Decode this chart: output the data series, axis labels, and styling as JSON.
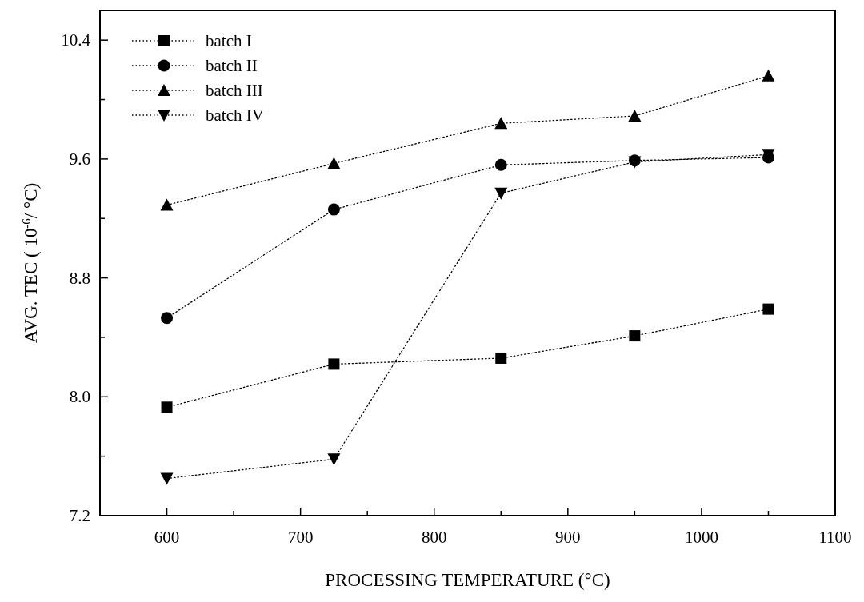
{
  "chart_data": {
    "type": "line",
    "xlabel": "PROCESSING TEMPERATURE (°C)",
    "ylabel": "AVG. TEC ( 10$^{-6}$/ °C)",
    "x": [
      600,
      725,
      850,
      950,
      1050
    ],
    "xlim": [
      550,
      1100
    ],
    "xticks": [
      600,
      {
        "value": 650,
        "label": null
      },
      700,
      {
        "value": 750,
        "label": null
      },
      800,
      {
        "value": 850,
        "label": null
      },
      900,
      {
        "value": 950,
        "label": null
      },
      1000,
      {
        "value": 1050,
        "label": null
      },
      1100
    ],
    "ylim": [
      7.2,
      10.6
    ],
    "yticks": [
      7.2,
      {
        "value": 7.6,
        "label": null
      },
      {
        "value": 8,
        "label": "8.0"
      },
      {
        "value": 8.4,
        "label": null
      },
      8.8,
      {
        "value": 9.2,
        "label": null
      },
      9.6,
      {
        "value": 10,
        "label": null
      },
      10.4
    ],
    "grid": false,
    "legend": "top left",
    "line_style": "dotted",
    "series": [
      {
        "name": "batch I",
        "color": "#000000",
        "marker": "square",
        "values": [
          7.93,
          8.22,
          8.26,
          8.41,
          8.59
        ]
      },
      {
        "name": "batch II",
        "color": "#000000",
        "marker": "circle",
        "values": [
          8.53,
          9.26,
          9.56,
          9.59,
          9.61
        ]
      },
      {
        "name": "batch III",
        "color": "#000000",
        "marker": "triangle",
        "values": [
          9.29,
          9.57,
          9.84,
          9.89,
          10.16
        ]
      },
      {
        "name": "batch IV",
        "color": "#000000",
        "marker": "triangle-down",
        "values": [
          7.45,
          7.58,
          9.37,
          9.58,
          9.63
        ]
      }
    ]
  }
}
